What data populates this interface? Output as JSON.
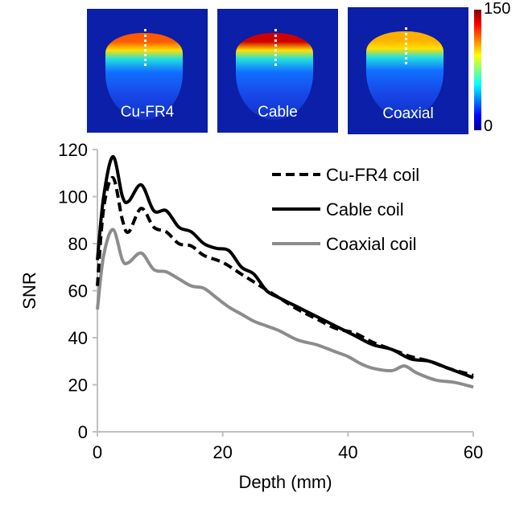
{
  "images": {
    "panels": [
      {
        "label": "Cu-FR4",
        "peak": "#ff5a00"
      },
      {
        "label": "Cable",
        "peak": "#d00000"
      },
      {
        "label": "Coaxial",
        "peak": "#ffb000"
      }
    ],
    "colorbar": {
      "max": "150",
      "min": "0"
    }
  },
  "chart_data": {
    "type": "line",
    "xlabel": "Depth (mm)",
    "ylabel": "SNR",
    "xlim": [
      0,
      60
    ],
    "ylim": [
      0,
      120
    ],
    "xticks": [
      "0",
      "20",
      "40",
      "60"
    ],
    "yticks": [
      "0",
      "20",
      "40",
      "60",
      "80",
      "100",
      "120"
    ],
    "legend_position": "top-right",
    "series": [
      {
        "name": "Cu-FR4 coil",
        "style": "dashed",
        "color": "#000000",
        "x": [
          0,
          1,
          2.5,
          4,
          5,
          7,
          9,
          11,
          13,
          15,
          17,
          20,
          23,
          26,
          29,
          32,
          35,
          38,
          41,
          44,
          46,
          48,
          50,
          53,
          56,
          60
        ],
        "y": [
          62,
          95,
          108,
          90,
          85,
          95,
          87,
          85,
          80,
          79,
          75,
          72,
          67,
          62,
          57,
          52,
          48,
          44,
          42,
          38,
          36,
          34,
          32,
          30,
          27,
          24
        ]
      },
      {
        "name": "Cable coil",
        "style": "solid",
        "color": "#000000",
        "x": [
          0,
          1,
          2.5,
          4,
          5,
          7,
          9,
          11,
          13,
          15,
          17,
          19,
          21,
          23,
          25,
          27,
          29,
          32,
          35,
          38,
          41,
          44,
          47,
          50,
          53,
          56,
          60
        ],
        "y": [
          73,
          100,
          117,
          100,
          98,
          105,
          94,
          94,
          87,
          85,
          80,
          78,
          77,
          70,
          67,
          60,
          57,
          53,
          49,
          45,
          41,
          37,
          35,
          31,
          30,
          27,
          23
        ]
      },
      {
        "name": "Coaxial coil",
        "style": "solid",
        "color": "#8c8c8c",
        "x": [
          0,
          1,
          2.5,
          4,
          5,
          7,
          9,
          11,
          13,
          15,
          17,
          19,
          21,
          23,
          25,
          27,
          29,
          32,
          35,
          38,
          40,
          42,
          44,
          47,
          49,
          51,
          54,
          57,
          60
        ],
        "y": [
          52,
          75,
          86,
          73,
          72,
          76,
          69,
          68,
          65,
          62,
          61,
          57,
          53,
          50,
          47,
          45,
          43,
          39,
          37,
          34,
          32,
          29,
          27,
          26,
          28,
          25,
          22,
          21,
          19
        ]
      }
    ]
  }
}
